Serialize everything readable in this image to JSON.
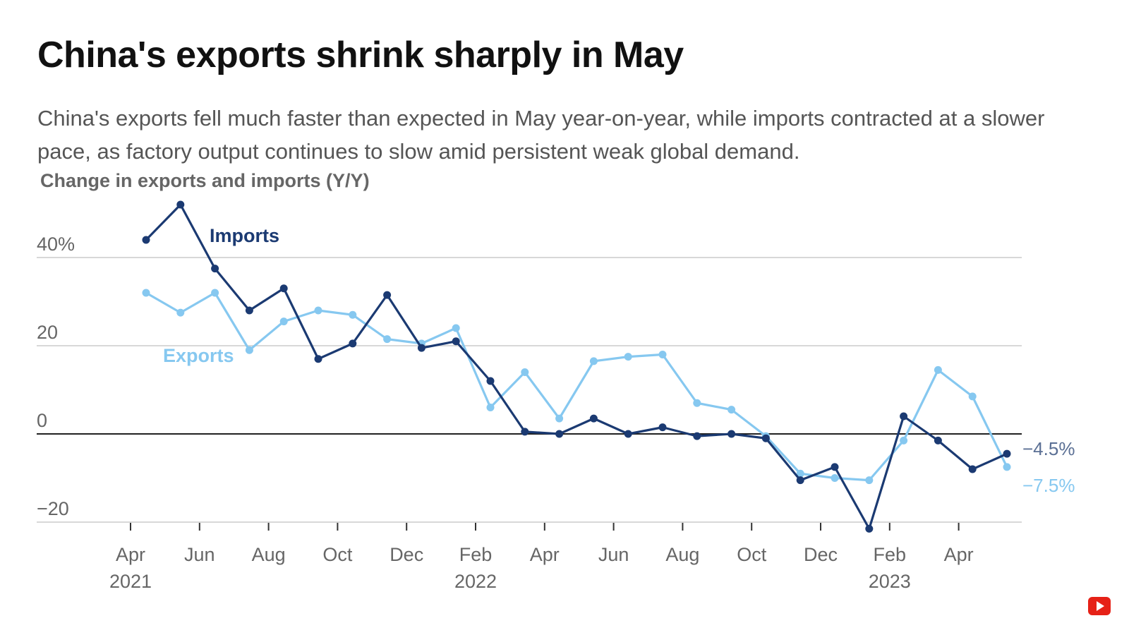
{
  "title": "China's exports shrink sharply in May",
  "subtitle": "China's exports fell much faster than expected in May year-on-year, while imports contracted at a slower pace, as factory output continues to slow amid persistent weak global demand.",
  "chart_data": {
    "type": "line",
    "title": "Change in exports and imports (Y/Y)",
    "ylim": [
      -20,
      40
    ],
    "y_ticks": [
      {
        "value": 40,
        "label": "40%"
      },
      {
        "value": 20,
        "label": "20"
      },
      {
        "value": 0,
        "label": "0"
      },
      {
        "value": -20,
        "label": "−20"
      }
    ],
    "x_ticks": [
      {
        "month": "Apr",
        "year": "2021"
      },
      {
        "month": "Jun",
        "year": ""
      },
      {
        "month": "Aug",
        "year": ""
      },
      {
        "month": "Oct",
        "year": ""
      },
      {
        "month": "Dec",
        "year": ""
      },
      {
        "month": "Feb",
        "year": "2022"
      },
      {
        "month": "Apr",
        "year": ""
      },
      {
        "month": "Jun",
        "year": ""
      },
      {
        "month": "Aug",
        "year": ""
      },
      {
        "month": "Oct",
        "year": ""
      },
      {
        "month": "Dec",
        "year": ""
      },
      {
        "month": "Feb",
        "year": "2023"
      },
      {
        "month": "Apr",
        "year": ""
      }
    ],
    "x": [
      "2021-04",
      "2021-05",
      "2021-06",
      "2021-07",
      "2021-08",
      "2021-09",
      "2021-10",
      "2021-11",
      "2021-12",
      "2022-01",
      "2022-02",
      "2022-03",
      "2022-04",
      "2022-05",
      "2022-06",
      "2022-07",
      "2022-08",
      "2022-09",
      "2022-10",
      "2022-11",
      "2022-12",
      "2023-01",
      "2023-02",
      "2023-03",
      "2023-04",
      "2023-05"
    ],
    "grid": true,
    "series": [
      {
        "name": "Imports",
        "color": "#1b3a72",
        "values": [
          44,
          52,
          37.5,
          28,
          33,
          17,
          20.5,
          31.5,
          19.5,
          21,
          12,
          0.5,
          0,
          3.5,
          0,
          1.5,
          -0.5,
          0,
          -1,
          -10.5,
          -7.5,
          -21.5,
          4,
          -1.5,
          -8,
          -4.5
        ],
        "end_label": "−4.5%"
      },
      {
        "name": "Exports",
        "color": "#86c8f0",
        "values": [
          32,
          27.5,
          32,
          19,
          25.5,
          28,
          27,
          21.5,
          20.5,
          24,
          6,
          14,
          3.5,
          16.5,
          17.5,
          18,
          7,
          5.5,
          -0.5,
          -9,
          -10,
          -10.5,
          -1.5,
          14.5,
          8.5,
          -7.5
        ],
        "end_label": "−7.5%"
      }
    ]
  }
}
